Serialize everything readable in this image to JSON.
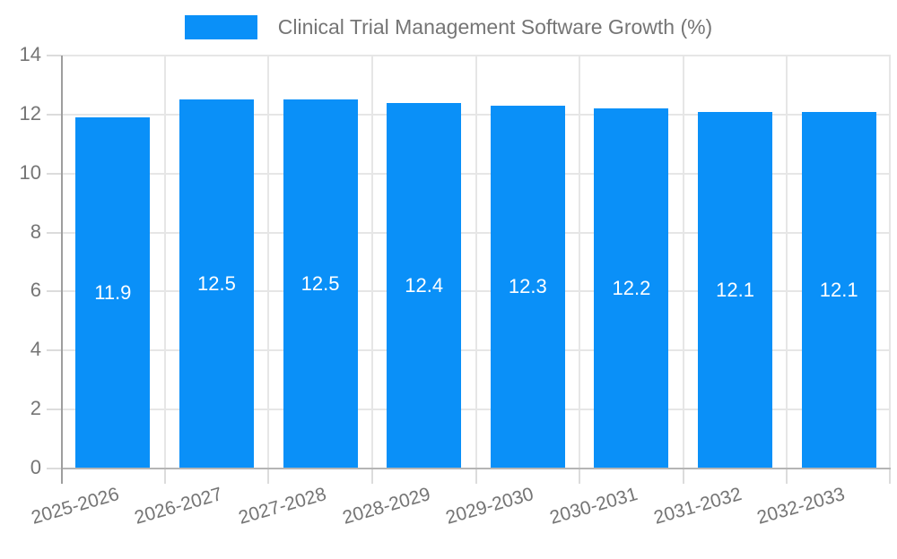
{
  "chart_data": {
    "type": "bar",
    "title": "Clinical Trial Management Software Growth (%)",
    "categories": [
      "2025-2026",
      "2026-2027",
      "2027-2028",
      "2028-2029",
      "2029-2030",
      "2030-2031",
      "2031-2032",
      "2032-2033"
    ],
    "values": [
      11.9,
      12.5,
      12.5,
      12.4,
      12.3,
      12.2,
      12.1,
      12.1
    ],
    "yticks": [
      "0",
      "2",
      "4",
      "6",
      "8",
      "10",
      "12",
      "14"
    ],
    "ylim": [
      0,
      14
    ],
    "xlabel": "",
    "ylabel": "",
    "grid": true,
    "legend_position": "top-center",
    "colors": {
      "bar": "#0a90f8",
      "bar_label": "#ffffff",
      "gridline": "#e6e6e6",
      "axis_line": "#9e9e9e",
      "baseline": "#b5b5b5",
      "tick_mark": "#dcdcdc",
      "label_text": "#757575",
      "background": "#ffffff"
    }
  }
}
